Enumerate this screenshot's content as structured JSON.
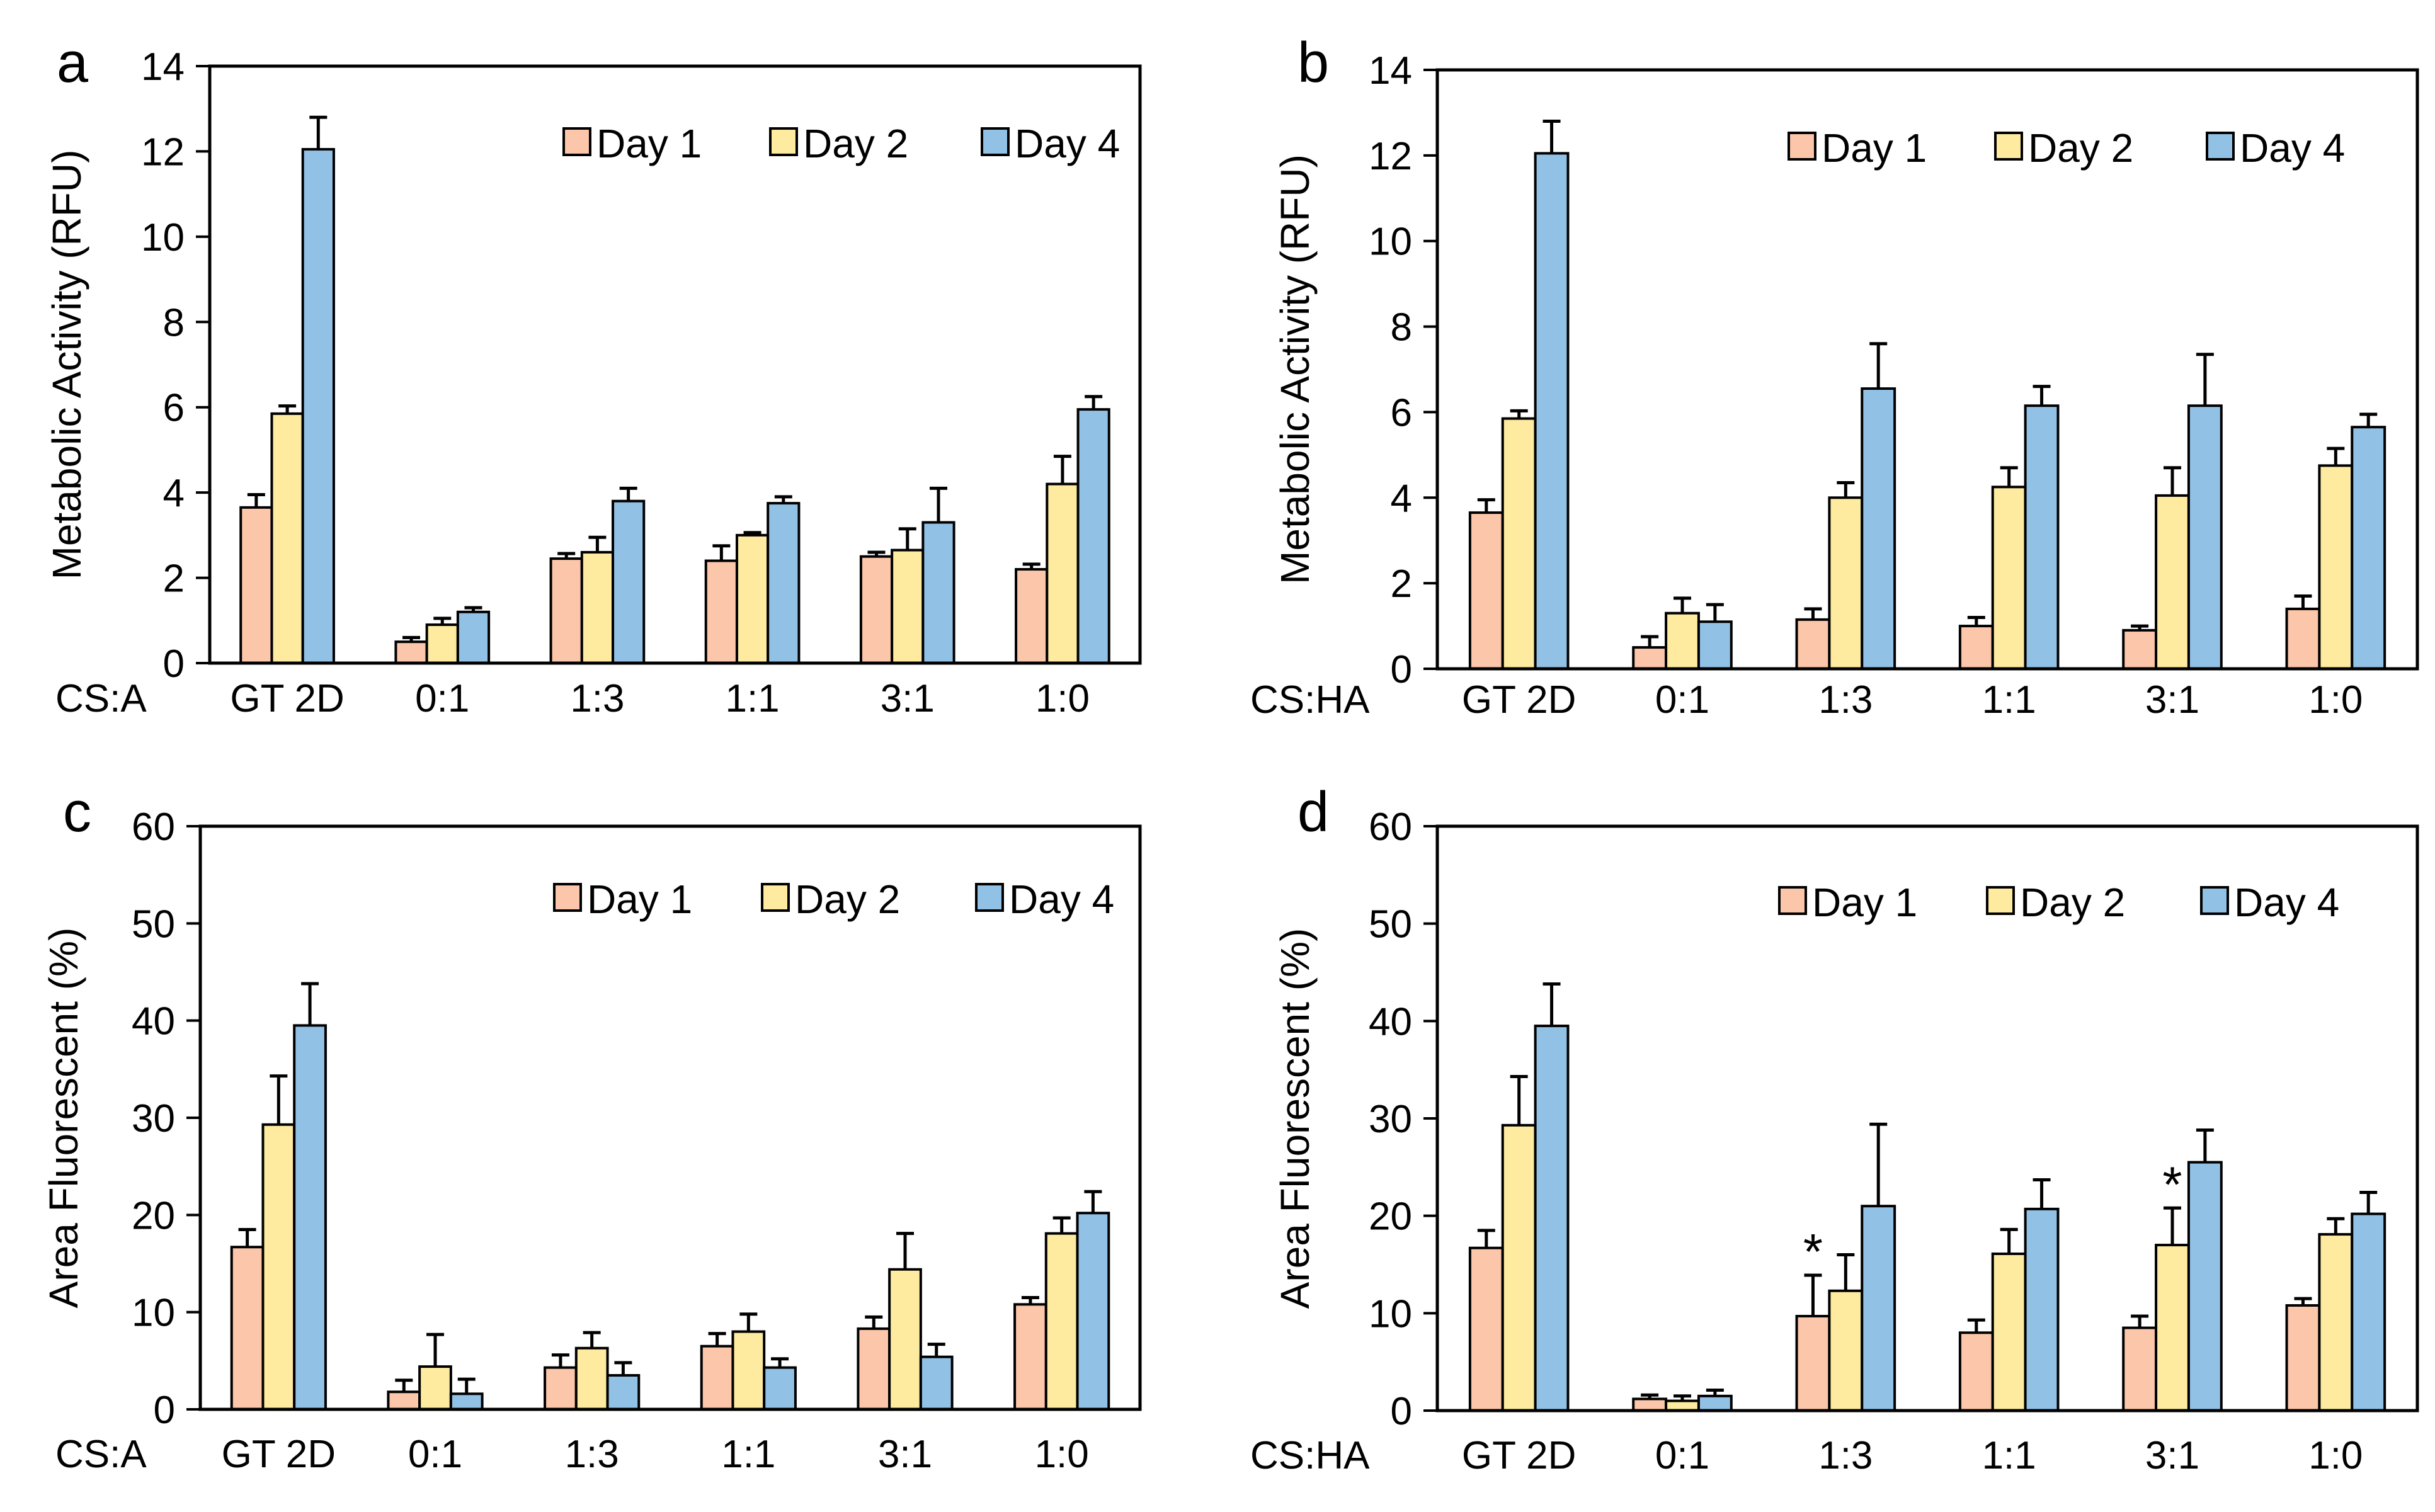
{
  "colors": {
    "day1": "#FBC6A9",
    "day2": "#FEEBA0",
    "day4": "#92C1E6",
    "stroke": "#000000"
  },
  "chart_data": [
    {
      "panel": "a",
      "type": "bar",
      "group_label": "CS:A",
      "ylabel": "Metabolic Activity (RFU)",
      "yticks": [
        "0",
        "2",
        "4",
        "6",
        "8",
        "10",
        "12",
        "14"
      ],
      "ylim": [
        0,
        14
      ],
      "categories": [
        "GT 2D",
        "0:1",
        "1:3",
        "1:1",
        "3:1",
        "1:0"
      ],
      "legend": [
        "Day 1",
        "Day 2",
        "Day 4"
      ],
      "series": [
        {
          "name": "Day 1",
          "values": [
            3.65,
            0.5,
            2.45,
            2.4,
            2.5,
            2.2
          ],
          "errors": [
            0.3,
            0.1,
            0.12,
            0.35,
            0.1,
            0.12
          ]
        },
        {
          "name": "Day 2",
          "values": [
            5.85,
            0.9,
            2.6,
            3.0,
            2.65,
            4.2
          ],
          "errors": [
            0.18,
            0.15,
            0.35,
            0.06,
            0.5,
            0.65
          ]
        },
        {
          "name": "Day 4",
          "values": [
            12.05,
            1.2,
            3.8,
            3.75,
            3.3,
            5.95
          ],
          "errors": [
            0.75,
            0.1,
            0.3,
            0.15,
            0.8,
            0.3
          ]
        }
      ],
      "annotations": []
    },
    {
      "panel": "b",
      "type": "bar",
      "group_label": "CS:HA",
      "ylabel": "Metabolic Activity (RFU)",
      "yticks": [
        "0",
        "2",
        "4",
        "6",
        "8",
        "10",
        "12",
        "14"
      ],
      "ylim": [
        0,
        14
      ],
      "categories": [
        "GT 2D",
        "0:1",
        "1:3",
        "1:1",
        "3:1",
        "1:0"
      ],
      "legend": [
        "Day 1",
        "Day 2",
        "Day 4"
      ],
      "series": [
        {
          "name": "Day 1",
          "values": [
            3.65,
            0.5,
            1.15,
            1.0,
            0.9,
            1.4
          ],
          "errors": [
            0.3,
            0.25,
            0.25,
            0.2,
            0.1,
            0.3
          ]
        },
        {
          "name": "Day 2",
          "values": [
            5.85,
            1.3,
            4.0,
            4.25,
            4.05,
            4.75
          ],
          "errors": [
            0.18,
            0.35,
            0.35,
            0.45,
            0.65,
            0.4
          ]
        },
        {
          "name": "Day 4",
          "values": [
            12.05,
            1.1,
            6.55,
            6.15,
            6.15,
            5.65
          ],
          "errors": [
            0.75,
            0.4,
            1.05,
            0.45,
            1.2,
            0.3
          ]
        }
      ],
      "annotations": []
    },
    {
      "panel": "c",
      "type": "bar",
      "group_label": "CS:A",
      "ylabel": "Area Fluorescent (%)",
      "yticks": [
        "0",
        "10",
        "20",
        "30",
        "40",
        "50",
        "60"
      ],
      "ylim": [
        0,
        60
      ],
      "categories": [
        "GT 2D",
        "0:1",
        "1:3",
        "1:1",
        "3:1",
        "1:0"
      ],
      "legend": [
        "Day 1",
        "Day 2",
        "Day 4"
      ],
      "series": [
        {
          "name": "Day 1",
          "values": [
            16.7,
            1.8,
            4.3,
            6.5,
            8.3,
            10.8
          ],
          "errors": [
            1.8,
            1.2,
            1.3,
            1.3,
            1.2,
            0.7
          ]
        },
        {
          "name": "Day 2",
          "values": [
            29.3,
            4.4,
            6.3,
            8.0,
            14.4,
            18.1
          ],
          "errors": [
            5.0,
            3.3,
            1.6,
            1.8,
            3.7,
            1.6
          ]
        },
        {
          "name": "Day 4",
          "values": [
            39.5,
            1.6,
            3.5,
            4.3,
            5.4,
            20.2
          ],
          "errors": [
            4.3,
            1.5,
            1.3,
            0.9,
            1.3,
            2.2
          ]
        }
      ],
      "annotations": []
    },
    {
      "panel": "d",
      "type": "bar",
      "group_label": "CS:HA",
      "ylabel": "Area Fluorescent (%)",
      "yticks": [
        "0",
        "10",
        "20",
        "30",
        "40",
        "50",
        "60"
      ],
      "ylim": [
        0,
        60
      ],
      "categories": [
        "GT 2D",
        "0:1",
        "1:3",
        "1:1",
        "3:1",
        "1:0"
      ],
      "legend": [
        "Day 1",
        "Day 2",
        "Day 4"
      ],
      "series": [
        {
          "name": "Day 1",
          "values": [
            16.7,
            1.2,
            9.7,
            8.0,
            8.5,
            10.8
          ],
          "errors": [
            1.8,
            0.4,
            4.2,
            1.3,
            1.2,
            0.7
          ]
        },
        {
          "name": "Day 2",
          "values": [
            29.3,
            1.0,
            12.3,
            16.1,
            17.0,
            18.1
          ],
          "errors": [
            5.0,
            0.5,
            3.7,
            2.5,
            3.8,
            1.6
          ]
        },
        {
          "name": "Day 4",
          "values": [
            39.5,
            1.5,
            21.0,
            20.7,
            25.5,
            20.2
          ],
          "errors": [
            4.3,
            0.6,
            8.4,
            3.0,
            3.3,
            2.2
          ]
        }
      ],
      "annotations": [
        {
          "text": "*",
          "category": 2,
          "series": 0
        },
        {
          "text": "*",
          "category": 4,
          "series": 1
        }
      ]
    }
  ]
}
